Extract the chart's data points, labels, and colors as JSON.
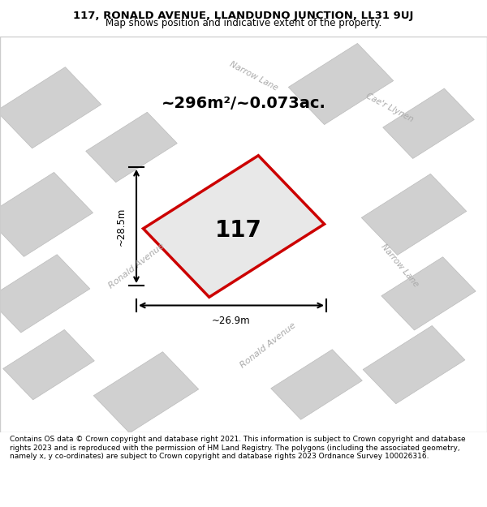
{
  "title_line1": "117, RONALD AVENUE, LLANDUDNO JUNCTION, LL31 9UJ",
  "title_line2": "Map shows position and indicative extent of the property.",
  "area_text": "~296m²/~0.073ac.",
  "plot_number": "117",
  "dim_height": "~28.5m",
  "dim_width": "~26.9m",
  "footer": "Contains OS data © Crown copyright and database right 2021. This information is subject to Crown copyright and database rights 2023 and is reproduced with the permission of HM Land Registry. The polygons (including the associated geometry, namely x, y co-ordinates) are subject to Crown copyright and database rights 2023 Ordnance Survey 100026316.",
  "bg_color": "#e8e8e8",
  "map_bg": "#e8e8e8",
  "road_color": "#ffffff",
  "building_color": "#d0d0d0",
  "plot_fill": "#e8e8e8",
  "plot_edge": "#cc0000",
  "road_label_color": "#aaaaaa",
  "footer_bg": "#ffffff",
  "title_bg": "#ffffff"
}
